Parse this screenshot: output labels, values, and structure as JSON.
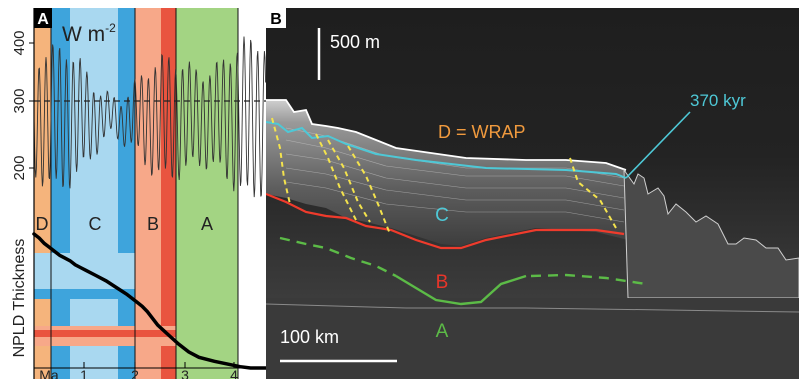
{
  "panel_a": {
    "label": "A",
    "insolation_unit": "W m",
    "insolation_unit_exp": "-2",
    "y_ticks": [
      "400",
      "300",
      "200"
    ],
    "y_axis_label": "NPLD Thickness",
    "x_ticks": [
      "Ma",
      "1",
      "2",
      "3",
      "4"
    ],
    "phases": [
      {
        "label": "D",
        "color": "#f5b47c"
      },
      {
        "label": "C",
        "color": "#58b3e0"
      },
      {
        "label": "B",
        "color": "#f2775d"
      },
      {
        "label": "A",
        "color": "#9fd27f"
      }
    ],
    "colors": {
      "D": "#f5b47c",
      "C_light": "#a9d8f0",
      "C_dark": "#3ea4dc",
      "B_light": "#f7a889",
      "B_dark": "#e9543f",
      "A": "#a3d483",
      "threshold_line": "#222222",
      "thickness_curve": "#000000"
    },
    "chart_data": {
      "type": "line",
      "series": [
        {
          "x": [
            0.0,
            0.1,
            0.2,
            0.3,
            0.4,
            0.5,
            0.6,
            0.7,
            0.8,
            0.9,
            1.0,
            1.2,
            1.4,
            1.6,
            1.8,
            2.0,
            2.1,
            2.2,
            2.3,
            2.4,
            2.6,
            2.8,
            3.0,
            3.2,
            3.5,
            4.0,
            4.2,
            4.5
          ],
          "y": [
            1.0,
            0.97,
            0.93,
            0.9,
            0.87,
            0.84,
            0.82,
            0.8,
            0.77,
            0.75,
            0.73,
            0.69,
            0.65,
            0.6,
            0.55,
            0.49,
            0.46,
            0.42,
            0.37,
            0.32,
            0.25,
            0.18,
            0.12,
            0.08,
            0.05,
            0.01,
            0.0,
            0.0
          ]
        }
      ]
    }
  },
  "panel_b": {
    "label": "B",
    "vertical_scale": "500 m",
    "horizontal_scale": "100 km",
    "age_label": "370 kyr",
    "wrap_label": "D = WRAP",
    "unit_labels": [
      {
        "text": "C",
        "color": "#4ec8d6"
      },
      {
        "text": "B",
        "color": "#e8352a"
      },
      {
        "text": "A",
        "color": "#5cbb47"
      }
    ],
    "colors": {
      "cyan": "#4ec8d6",
      "red": "#ef3b2c",
      "green": "#5cbb47",
      "yellow": "#f4e34d",
      "orange": "#f09a3e",
      "scale_bar": "#ffffff"
    }
  }
}
